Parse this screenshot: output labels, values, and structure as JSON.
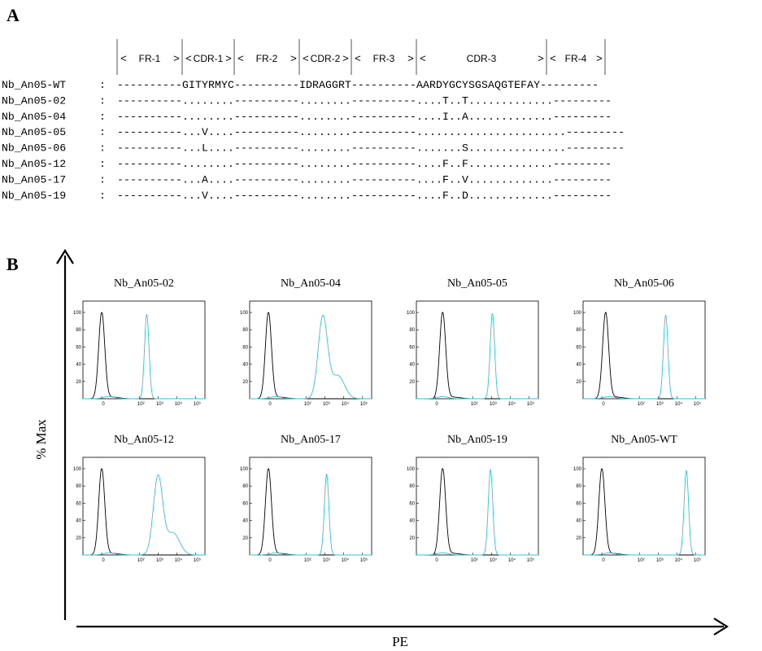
{
  "panel_a": {
    "letter": "A",
    "regions": [
      {
        "label": "FR-1",
        "start": 0,
        "end": 10
      },
      {
        "label": "CDR-1",
        "start": 10,
        "end": 18
      },
      {
        "label": "FR-2",
        "start": 18,
        "end": 28
      },
      {
        "label": "CDR-2",
        "start": 28,
        "end": 36
      },
      {
        "label": "FR-3",
        "start": 36,
        "end": 46
      },
      {
        "label": "CDR-3",
        "start": 46,
        "end": 66
      },
      {
        "label": "FR-4",
        "start": 66,
        "end": 75
      }
    ],
    "rows": [
      {
        "name": "Nb_An05-WT",
        "seq": "----------GITYRMYC----------IDRAGGRT----------AARDYGCYSGSAQGTEFAY---------"
      },
      {
        "name": "Nb_An05-02",
        "seq": "----------........----------........----------....T..T.............---------"
      },
      {
        "name": "Nb_An05-04",
        "seq": "----------........----------........----------....I..A.............---------"
      },
      {
        "name": "Nb_An05-05",
        "seq": "----------...V....----------........----------.......................---------"
      },
      {
        "name": "Nb_An05-06",
        "seq": "----------...L....----------........----------.......S...............---------"
      },
      {
        "name": "Nb_An05-12",
        "seq": "----------........----------........----------....F..F.............---------"
      },
      {
        "name": "Nb_An05-17",
        "seq": "----------...A....----------........----------....F..V.............---------"
      },
      {
        "name": "Nb_An05-19",
        "seq": "----------...V....----------........----------....F..D.............---------"
      }
    ]
  },
  "panel_b": {
    "letter": "B",
    "ylabel": "% Max",
    "xlabel": "PE"
  },
  "chart_data": [
    {
      "type": "histogram",
      "title": "Nb_An05-02",
      "x_scale": "log",
      "xlim": [
        -1,
        5.5
      ],
      "ylim": [
        0,
        100
      ],
      "yticks": [
        20,
        40,
        60,
        80,
        100
      ],
      "xticks": [
        "0",
        "10²",
        "10³",
        "10⁴",
        "10⁵"
      ],
      "series": [
        {
          "color": "#000000",
          "peak_log10": 0.0,
          "peak": 100
        },
        {
          "color": "#33c3e0",
          "peak_log10": 2.4,
          "peak": 98
        }
      ]
    },
    {
      "type": "histogram",
      "title": "Nb_An05-04",
      "x_scale": "log",
      "xlim": [
        -1,
        5.5
      ],
      "ylim": [
        0,
        100
      ],
      "yticks": [
        20,
        40,
        60,
        80,
        100
      ],
      "xticks": [
        "0",
        "10²",
        "10³",
        "10⁴",
        "10⁵"
      ],
      "series": [
        {
          "color": "#000000",
          "peak_log10": 0.0,
          "peak": 100
        },
        {
          "color": "#33c3e0",
          "peak_log10": 2.9,
          "peak": 95
        }
      ]
    },
    {
      "type": "histogram",
      "title": "Nb_An05-05",
      "x_scale": "log",
      "xlim": [
        -1,
        5.5
      ],
      "ylim": [
        0,
        100
      ],
      "yticks": [
        20,
        40,
        60,
        80,
        100
      ],
      "xticks": [
        "0",
        "10²",
        "10³",
        "10⁴",
        "10⁵"
      ],
      "series": [
        {
          "color": "#000000",
          "peak_log10": 0.4,
          "peak": 100
        },
        {
          "color": "#33c3e0",
          "peak_log10": 3.05,
          "peak": 99
        }
      ]
    },
    {
      "type": "histogram",
      "title": "Nb_An05-06",
      "x_scale": "log",
      "xlim": [
        -1,
        5.5
      ],
      "ylim": [
        0,
        100
      ],
      "yticks": [
        20,
        40,
        60,
        80,
        100
      ],
      "xticks": [
        "0",
        "10²",
        "10³",
        "10⁴",
        "10⁵"
      ],
      "series": [
        {
          "color": "#000000",
          "peak_log10": 0.2,
          "peak": 100
        },
        {
          "color": "#33c3e0",
          "peak_log10": 3.4,
          "peak": 97
        }
      ]
    },
    {
      "type": "histogram",
      "title": "Nb_An05-12",
      "x_scale": "log",
      "xlim": [
        -1,
        5.5
      ],
      "ylim": [
        0,
        100
      ],
      "yticks": [
        20,
        40,
        60,
        80,
        100
      ],
      "xticks": [
        "0",
        "10²",
        "10³",
        "10⁴",
        "10⁵"
      ],
      "series": [
        {
          "color": "#000000",
          "peak_log10": 0.0,
          "peak": 100
        },
        {
          "color": "#33c3e0",
          "peak_log10": 3.0,
          "peak": 91
        }
      ]
    },
    {
      "type": "histogram",
      "title": "Nb_An05-17",
      "x_scale": "log",
      "xlim": [
        -1,
        5.5
      ],
      "ylim": [
        0,
        100
      ],
      "yticks": [
        20,
        40,
        60,
        80,
        100
      ],
      "xticks": [
        "0",
        "10²",
        "10³",
        "10⁴",
        "10⁵"
      ],
      "series": [
        {
          "color": "#000000",
          "peak_log10": 0.0,
          "peak": 100
        },
        {
          "color": "#33c3e0",
          "peak_log10": 3.1,
          "peak": 94
        }
      ]
    },
    {
      "type": "histogram",
      "title": "Nb_An05-19",
      "x_scale": "log",
      "xlim": [
        -1,
        5.5
      ],
      "ylim": [
        0,
        100
      ],
      "yticks": [
        20,
        40,
        60,
        80,
        100
      ],
      "xticks": [
        "0",
        "10²",
        "10³",
        "10⁴",
        "10⁵"
      ],
      "series": [
        {
          "color": "#000000",
          "peak_log10": 0.4,
          "peak": 100
        },
        {
          "color": "#33c3e0",
          "peak_log10": 2.95,
          "peak": 99
        }
      ]
    },
    {
      "type": "histogram",
      "title": "Nb_An05-WT",
      "x_scale": "log",
      "xlim": [
        -1,
        5.5
      ],
      "ylim": [
        0,
        100
      ],
      "yticks": [
        20,
        40,
        60,
        80,
        100
      ],
      "xticks": [
        "0",
        "10²",
        "10³",
        "10⁴",
        "10⁵"
      ],
      "series": [
        {
          "color": "#000000",
          "peak_log10": 0.0,
          "peak": 100
        },
        {
          "color": "#33c3e0",
          "peak_log10": 4.5,
          "peak": 98
        }
      ]
    }
  ]
}
